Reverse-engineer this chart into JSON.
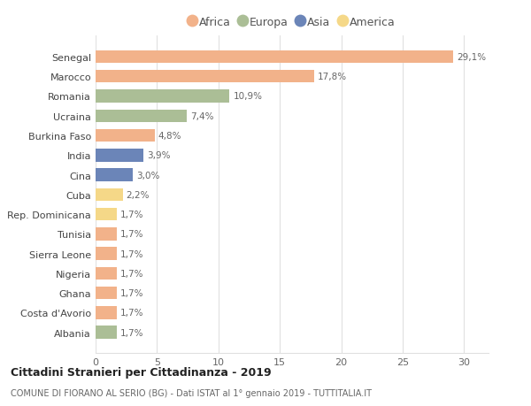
{
  "countries": [
    "Senegal",
    "Marocco",
    "Romania",
    "Ucraina",
    "Burkina Faso",
    "India",
    "Cina",
    "Cuba",
    "Rep. Dominicana",
    "Tunisia",
    "Sierra Leone",
    "Nigeria",
    "Ghana",
    "Costa d'Avorio",
    "Albania"
  ],
  "values": [
    29.1,
    17.8,
    10.9,
    7.4,
    4.8,
    3.9,
    3.0,
    2.2,
    1.7,
    1.7,
    1.7,
    1.7,
    1.7,
    1.7,
    1.7
  ],
  "labels": [
    "29,1%",
    "17,8%",
    "10,9%",
    "7,4%",
    "4,8%",
    "3,9%",
    "3,0%",
    "2,2%",
    "1,7%",
    "1,7%",
    "1,7%",
    "1,7%",
    "1,7%",
    "1,7%",
    "1,7%"
  ],
  "continents": [
    "Africa",
    "Africa",
    "Europa",
    "Europa",
    "Africa",
    "Asia",
    "Asia",
    "America",
    "America",
    "Africa",
    "Africa",
    "Africa",
    "Africa",
    "Africa",
    "Europa"
  ],
  "colors": {
    "Africa": "#F2B28A",
    "Europa": "#ABBE96",
    "Asia": "#6B85B8",
    "America": "#F5D888"
  },
  "legend_order": [
    "Africa",
    "Europa",
    "Asia",
    "America"
  ],
  "title_bold": "Cittadini Stranieri per Cittadinanza - 2019",
  "subtitle": "COMUNE DI FIORANO AL SERIO (BG) - Dati ISTAT al 1° gennaio 2019 - TUTTITALIA.IT",
  "xlim": [
    0,
    32
  ],
  "xticks": [
    0,
    5,
    10,
    15,
    20,
    25,
    30
  ],
  "background_color": "#ffffff",
  "grid_color": "#e0e0e0"
}
